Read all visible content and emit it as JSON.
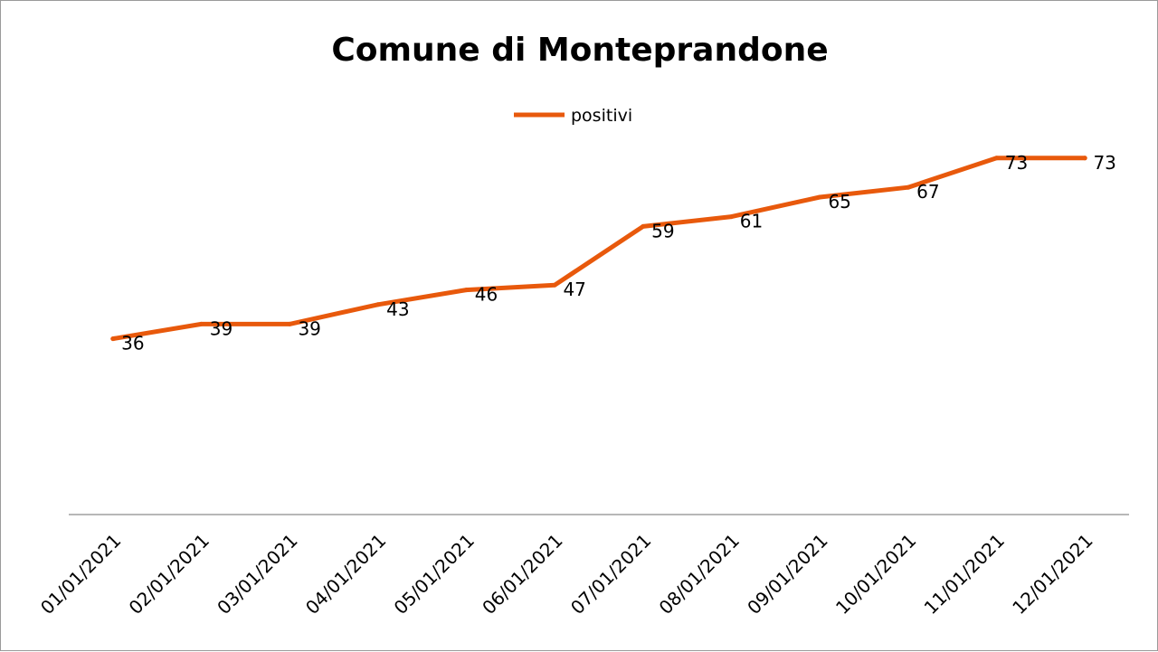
{
  "chart_data": {
    "type": "line",
    "title": "Comune di Monteprandone",
    "xlabel": "",
    "ylabel": "",
    "categories": [
      "01/01/2021",
      "02/01/2021",
      "03/01/2021",
      "04/01/2021",
      "05/01/2021",
      "06/01/2021",
      "07/01/2021",
      "08/01/2021",
      "09/01/2021",
      "10/01/2021",
      "11/01/2021",
      "12/01/2021"
    ],
    "series": [
      {
        "name": "positivi",
        "color": "#E8590C",
        "values": [
          36,
          39,
          39,
          43,
          46,
          47,
          59,
          61,
          65,
          67,
          73,
          73
        ]
      }
    ],
    "ylim": [
      0,
      80
    ],
    "grid": false,
    "legend_position": "top",
    "data_labels": true
  }
}
